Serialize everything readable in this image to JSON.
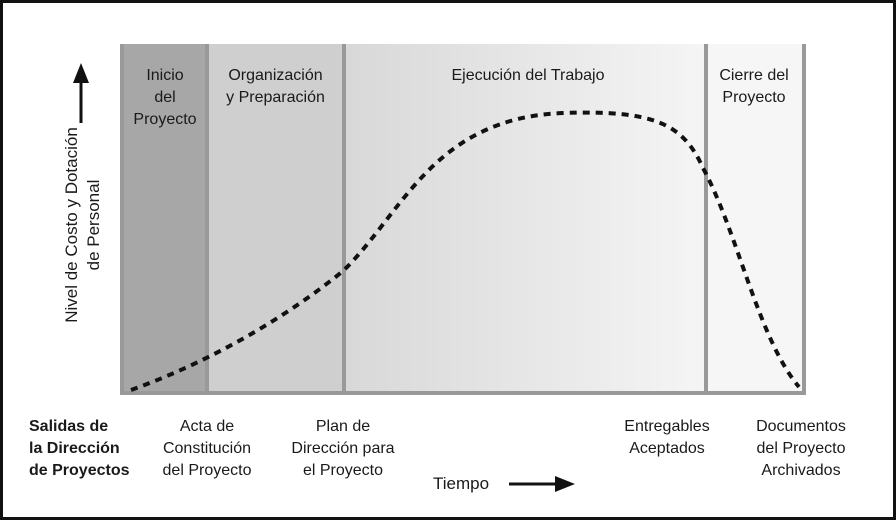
{
  "diagram": {
    "phases": [
      {
        "label": "Inicio\ndel\nProyecto"
      },
      {
        "label": "Organización\ny Preparación"
      },
      {
        "label": "Ejecución del Trabajo"
      },
      {
        "label": "Cierre del\nProyecto"
      }
    ],
    "y_axis_label": "Nivel de Costo y Dotación\nde Personal",
    "x_axis_label": "Tiempo",
    "outputs_heading": "Salidas de\nla Dirección\nde Proyectos",
    "outputs": [
      {
        "label": "Acta de\nConstitución\ndel Proyecto"
      },
      {
        "label": "Plan de\nDirección para\nel Proyecto"
      },
      {
        "label": "Entregables\nAceptados"
      },
      {
        "label": "Documentos\ndel Proyecto\nArchivados"
      }
    ],
    "colors": {
      "phase1_bg": "#a7a7a7",
      "phase2_bg": "#cfcfcf",
      "phase3_start": "#d8d8d8",
      "phase3_end": "#f5f5f5",
      "phase4_bg": "#f6f6f6",
      "divider": "#999999",
      "curve": "#111111"
    }
  }
}
